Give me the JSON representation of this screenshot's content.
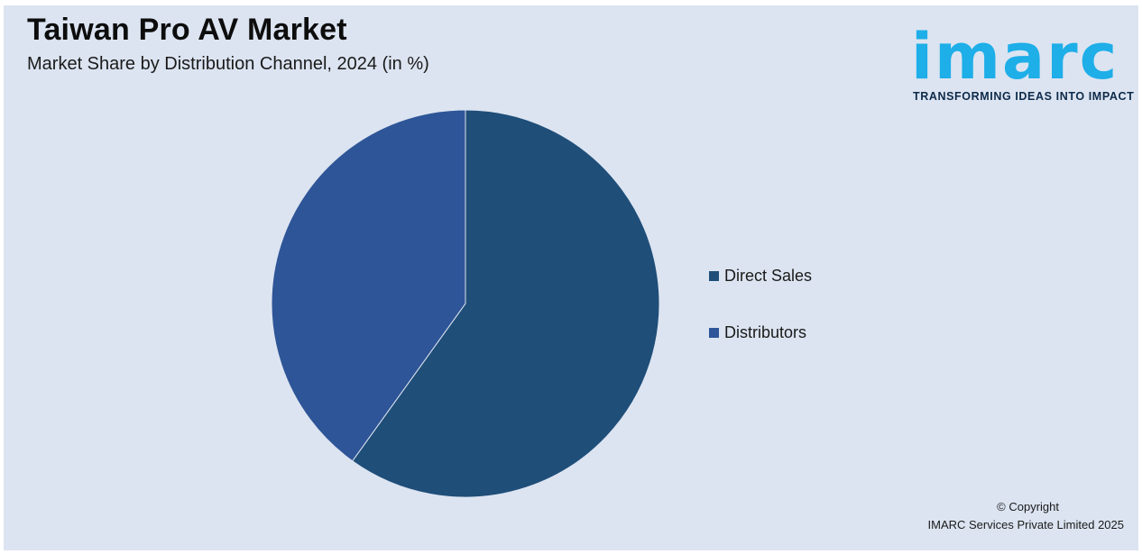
{
  "header": {
    "title": "Taiwan Pro AV Market",
    "subtitle": "Market Share by Distribution Channel, 2024 (in %)"
  },
  "logo": {
    "word": "imarc",
    "tagline": "TRANSFORMING IDEAS INTO IMPACT",
    "color": "#1eaee8"
  },
  "chart_data": {
    "type": "pie",
    "title": "Taiwan Pro AV Market",
    "subtitle": "Market Share by Distribution Channel, 2024 (in %)",
    "categories": [
      "Direct Sales",
      "Distributors"
    ],
    "values": [
      59.9,
      40.1
    ],
    "colors": [
      "#1f4e79",
      "#2e5597"
    ],
    "legend": "right",
    "start_angle": "12 o'clock",
    "direction": "clockwise"
  },
  "footer": {
    "copyright_line1": "© Copyright",
    "copyright_line2": "IMARC Services Private Limited 2025"
  }
}
